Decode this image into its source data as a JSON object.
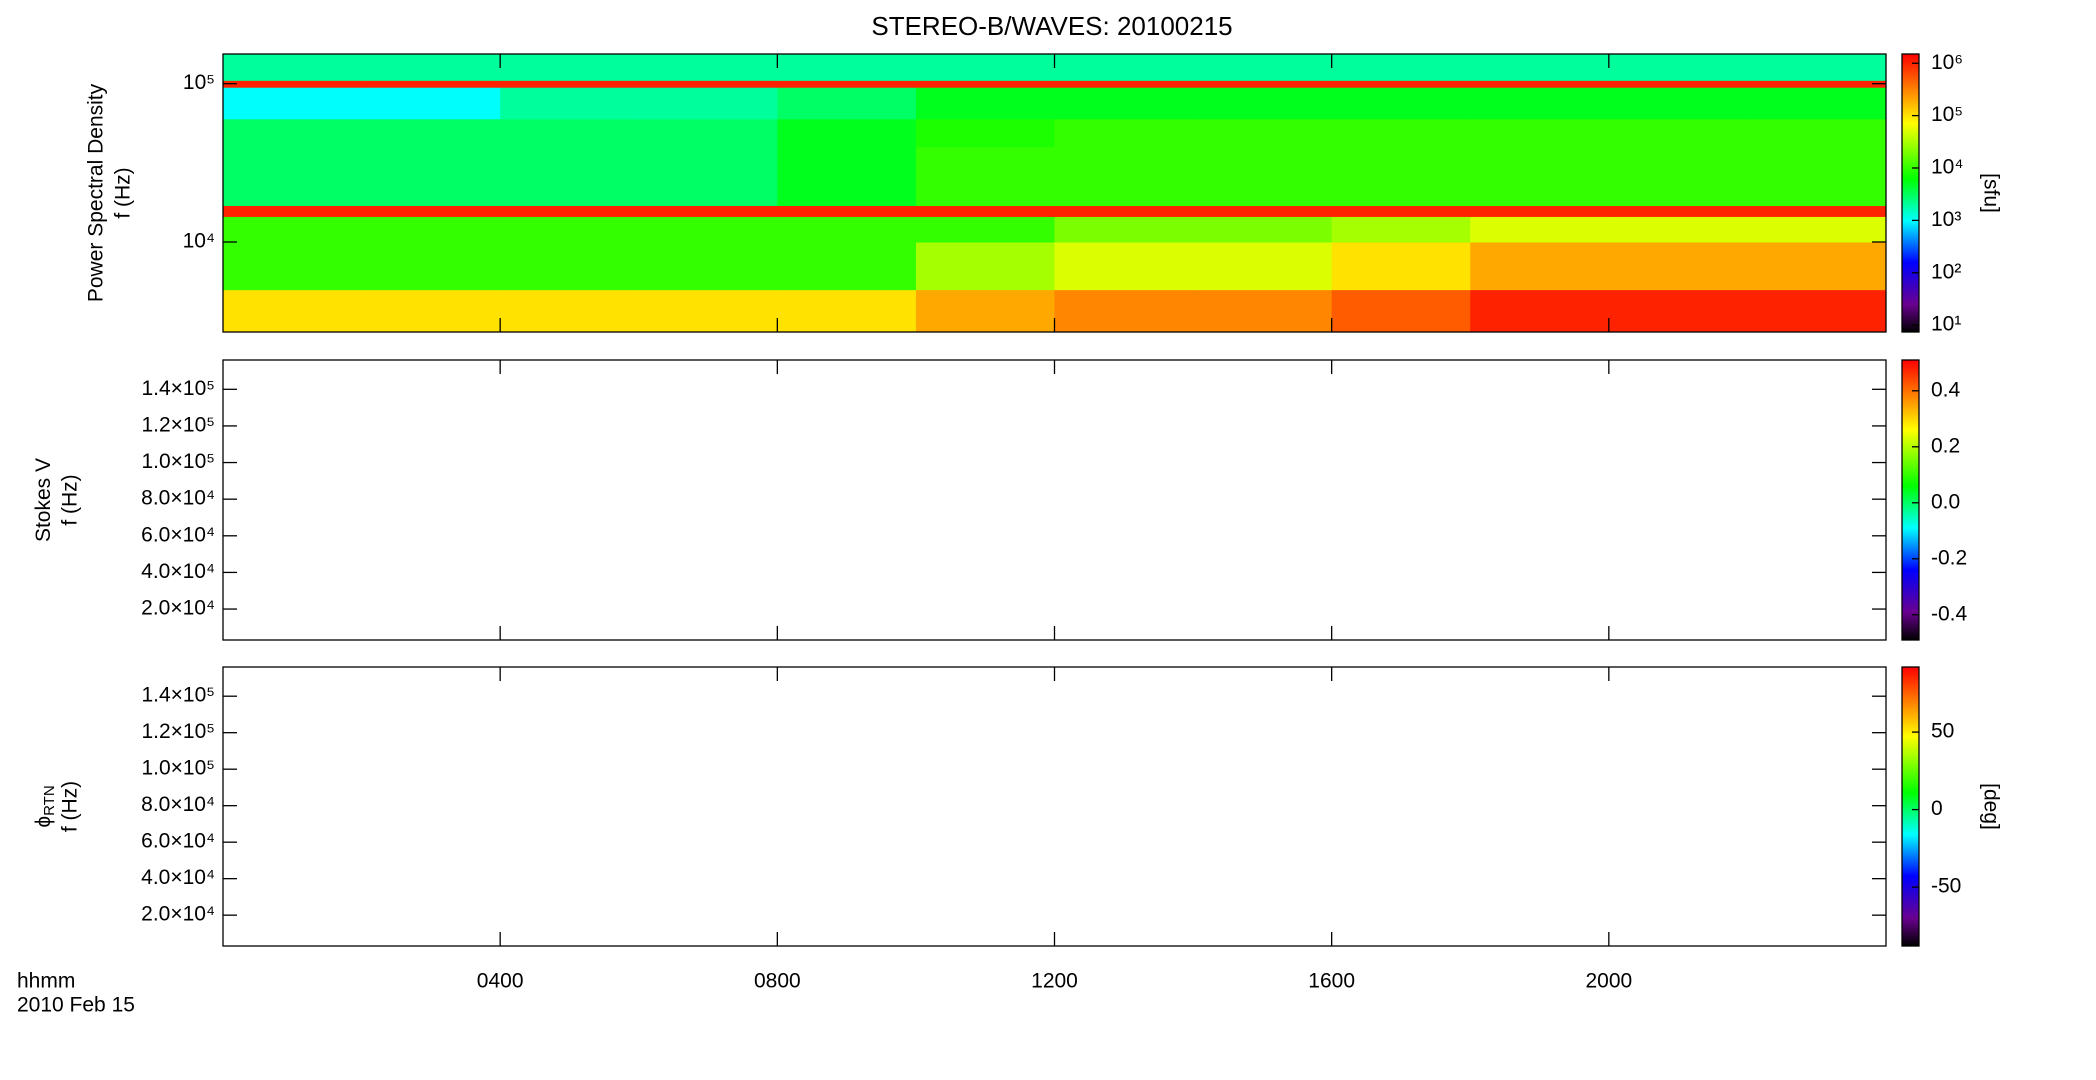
{
  "chart_data": [
    {
      "type": "heatmap",
      "title": "STEREO-B/WAVES: 20100215",
      "ylabel": "Power Spectral Density",
      "ylabel2": "f (Hz)",
      "yscale": "log",
      "ylim": [
        2700,
        154000
      ],
      "yticks": [
        {
          "value": 10000,
          "label": "10⁴"
        },
        {
          "value": 100000,
          "label": "10⁵"
        }
      ],
      "x_edges": [
        0,
        2,
        4,
        6,
        8,
        10,
        12,
        14,
        16,
        18,
        20,
        22,
        24
      ],
      "y_edges": [
        2700,
        5000,
        10000,
        14500,
        17000,
        40000,
        60000,
        95000,
        105000,
        154000
      ],
      "z": [
        [
          100000,
          100000,
          100000,
          100000,
          100000,
          200000,
          300000,
          300000,
          500000,
          1000000,
          1000000,
          1000000
        ],
        [
          10000,
          10000,
          10000,
          10000,
          10000,
          30000,
          50000,
          50000,
          100000,
          200000,
          200000,
          200000
        ],
        [
          10000,
          10000,
          10000,
          10000,
          10000,
          10000,
          20000,
          20000,
          30000,
          50000,
          50000,
          50000
        ],
        [
          1000000,
          1000000,
          1000000,
          1000000,
          1000000,
          1000000,
          1000000,
          1000000,
          1000000,
          1000000,
          1000000,
          1000000
        ],
        [
          3000,
          3000,
          3000,
          3000,
          5000,
          10000,
          10000,
          10000,
          10000,
          10000,
          10000,
          10000
        ],
        [
          3000,
          3000,
          3000,
          3000,
          5000,
          8000,
          10000,
          10000,
          10000,
          10000,
          10000,
          10000
        ],
        [
          1000,
          1000,
          2000,
          2000,
          3000,
          5000,
          5000,
          5000,
          5000,
          5000,
          5000,
          5000
        ],
        [
          1000000,
          1000000,
          1000000,
          1000000,
          1000000,
          1000000,
          1000000,
          1000000,
          1000000,
          1000000,
          1000000,
          1000000
        ],
        [
          2000,
          2000,
          2000,
          2000,
          2000,
          2000,
          2000,
          2000,
          2000,
          2000,
          2000,
          2000
        ]
      ],
      "colormap": "rainbow",
      "zscale": "log",
      "zlim": [
        7.4,
        1500000
      ],
      "zticks": [
        {
          "value": 10,
          "label": "10¹"
        },
        {
          "value": 100,
          "label": "10²"
        },
        {
          "value": 1000,
          "label": "10³"
        },
        {
          "value": 10000,
          "label": "10⁴"
        },
        {
          "value": 100000,
          "label": "10⁵"
        },
        {
          "value": 1000000,
          "label": "10⁶"
        }
      ],
      "zlabel": "[sfu]"
    },
    {
      "type": "heatmap",
      "ylabel": "Stokes V",
      "ylabel2": "f (Hz)",
      "yscale": "linear",
      "ylim": [
        3100,
        156000
      ],
      "yticks": [
        {
          "value": 20000,
          "label": "2.0×10⁴"
        },
        {
          "value": 40000,
          "label": "4.0×10⁴"
        },
        {
          "value": 60000,
          "label": "6.0×10⁴"
        },
        {
          "value": 80000,
          "label": "8.0×10⁴"
        },
        {
          "value": 100000,
          "label": "1.0×10⁵"
        },
        {
          "value": 120000,
          "label": "1.2×10⁵"
        },
        {
          "value": 140000,
          "label": "1.4×10⁵"
        }
      ],
      "colormap": "rainbow",
      "zscale": "linear",
      "zlim": [
        -0.49,
        0.51
      ],
      "zticks": [
        -0.4,
        -0.2,
        {
          "value": 0,
          "label": "0.0"
        },
        0.2,
        0.4
      ]
    },
    {
      "type": "heatmap",
      "ylabel": "ϕ",
      "ylabel_subscript": "RTN",
      "ylabel2": "f (Hz)",
      "yscale": "linear",
      "ylim": [
        3100,
        156000
      ],
      "yticks": [
        {
          "value": 20000,
          "label": "2.0×10⁴"
        },
        {
          "value": 40000,
          "label": "4.0×10⁴"
        },
        {
          "value": 60000,
          "label": "6.0×10⁴"
        },
        {
          "value": 80000,
          "label": "8.0×10⁴"
        },
        {
          "value": 100000,
          "label": "1.0×10⁵"
        },
        {
          "value": 120000,
          "label": "1.2×10⁵"
        },
        {
          "value": 140000,
          "label": "1.4×10⁵"
        }
      ],
      "colormap": "rainbow",
      "zscale": "linear",
      "zlim": [
        -88,
        92
      ],
      "zticks": [
        -50,
        0,
        50
      ],
      "zlabel": "[deg]",
      "xlim": [
        0,
        24
      ],
      "xticks": [
        {
          "value": 4,
          "label": "0400"
        },
        {
          "value": 8,
          "label": "0800"
        },
        {
          "value": 12,
          "label": "1200"
        },
        {
          "value": 16,
          "label": "1600"
        },
        {
          "value": 20,
          "label": "2000"
        }
      ],
      "xlabel": "hhmm",
      "date_label": "2010 Feb 15"
    }
  ]
}
